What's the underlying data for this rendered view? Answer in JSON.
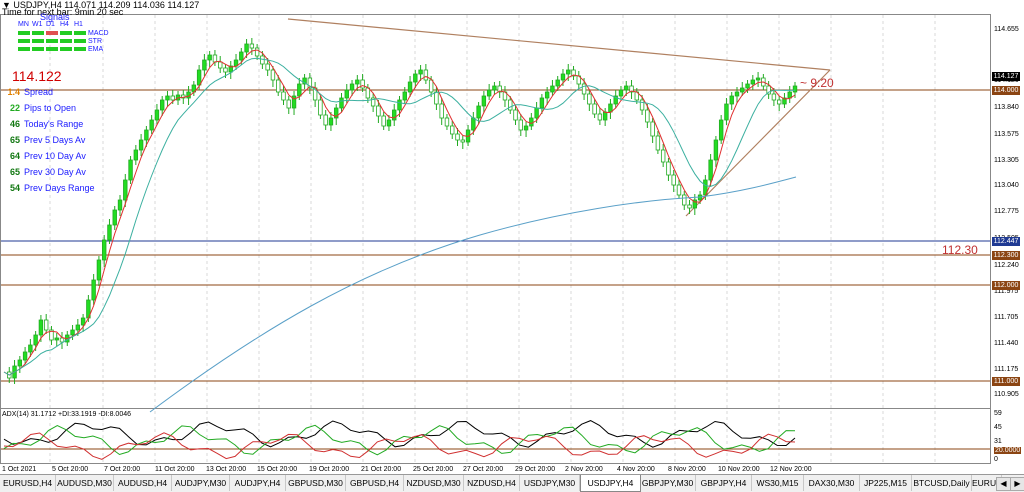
{
  "header": {
    "symbol_line": "▼ USDJPY,H4  114.071 114.209 114.036 114.127",
    "time_line": "Time for next bar: 9min 20 sec"
  },
  "signals": {
    "title": "Signals",
    "timeframes": [
      "MN",
      "W1",
      "D1",
      "H4",
      "H1"
    ],
    "rows": [
      {
        "label": "MACD",
        "colors": [
          "#22cc22",
          "#22cc22",
          "#e05050",
          "#22cc22",
          "#22cc22"
        ]
      },
      {
        "label": "STR",
        "colors": [
          "#22cc22",
          "#22cc22",
          "#22cc22",
          "#22cc22",
          "#22cc22"
        ]
      },
      {
        "label": "EMA",
        "colors": [
          "#22cc22",
          "#22cc22",
          "#22cc22",
          "#22cc22",
          "#22cc22"
        ]
      }
    ]
  },
  "price_display": "114.122",
  "info_panel": [
    {
      "num": "1.4",
      "label": "Spread",
      "color": "#e08000"
    },
    {
      "num": "22",
      "label": "Pips to Open",
      "color": "#22aa22"
    },
    {
      "num": "46",
      "label": "Today's Range",
      "color": "#117711"
    },
    {
      "num": "65",
      "label": "Prev 5 Days Av",
      "color": "#117711"
    },
    {
      "num": "64",
      "label": "Prev 10 Day Av",
      "color": "#117711"
    },
    {
      "num": "65",
      "label": "Prev 30 Day Av",
      "color": "#117711"
    },
    {
      "num": "54",
      "label": "Prev Days Range",
      "color": "#117711"
    }
  ],
  "annotations": {
    "countdown": "~ 9:20",
    "level_label": "112.30"
  },
  "price_axis": [
    "114.655",
    "114.120",
    "113.840",
    "113.575",
    "113.305",
    "113.040",
    "112.775",
    "112.505",
    "112.240",
    "111.975",
    "111.705",
    "111.440",
    "111.175",
    "110.905"
  ],
  "price_tags": [
    {
      "value": "114.127",
      "bg": "#000000",
      "fg": "#ffffff"
    },
    {
      "value": "114.000",
      "bg": "#8b4513",
      "fg": "#ffffff"
    },
    {
      "value": "112.447",
      "bg": "#1f3a93",
      "fg": "#ffffff"
    },
    {
      "value": "112.300",
      "bg": "#8b4513",
      "fg": "#ffffff"
    },
    {
      "value": "112.000",
      "bg": "#8b4513",
      "fg": "#ffffff"
    },
    {
      "value": "111.000",
      "bg": "#8b4513",
      "fg": "#ffffff"
    }
  ],
  "adx": {
    "label": "ADX(14) 31.1712 +DI:33.1919 -DI:8.0046",
    "axis": [
      "59",
      "45",
      "31",
      "20.0000",
      "0"
    ]
  },
  "time_axis": [
    "1 Oct 2021",
    "5 Oct 20:00",
    "7 Oct 20:00",
    "11 Oct 20:00",
    "13 Oct 20:00",
    "15 Oct 20:00",
    "19 Oct 20:00",
    "21 Oct 20:00",
    "25 Oct 20:00",
    "27 Oct 20:00",
    "29 Oct 20:00",
    "2 Nov 20:00",
    "4 Nov 20:00",
    "8 Nov 20:00",
    "10 Nov 20:00",
    "12 Nov 20:00"
  ],
  "tabs": [
    "EURUSD,H4",
    "AUDUSD,M30",
    "AUDUSD,H4",
    "AUDJPY,M30",
    "AUDJPY,H4",
    "GBPUSD,M30",
    "GBPUSD,H4",
    "NZDUSD,M30",
    "NZDUSD,H4",
    "USDJPY,M30",
    "USDJPY,H4",
    "GBPJPY,M30",
    "GBPJPY,H4",
    "WS30,M15",
    "DAX30,M30",
    "JP225,M15",
    "BTCUSD,Daily",
    "EURUSD"
  ],
  "active_tab": "USDJPY,H4",
  "colors": {
    "bull": "#22cc22",
    "bear": "#22aa22",
    "fast_ma": "#e03030",
    "slow_ma": "#3cb0a0",
    "long_ma": "#5aa0c8",
    "trend": "#b08060",
    "level": "#8b4513",
    "level_blue": "#1f3a93"
  }
}
